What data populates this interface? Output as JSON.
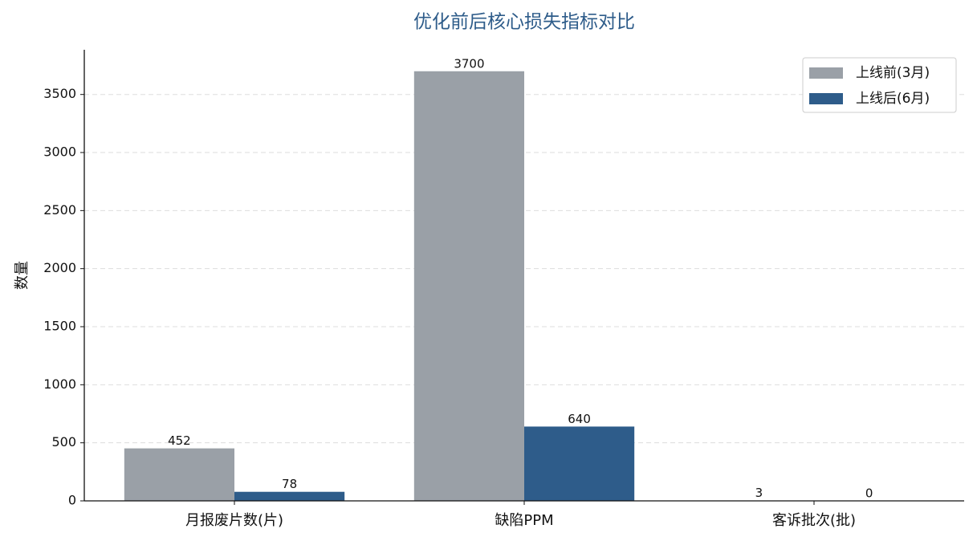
{
  "chart_data": {
    "type": "bar",
    "title": "优化前后核心损失指标对比",
    "y_label": "数量",
    "categories": [
      "月报废片数(片)",
      "缺陷PPM",
      "客诉批次(批)"
    ],
    "series": [
      {
        "name": "上线前(3月)",
        "color": "#9aa0a7",
        "values": [
          452,
          3700,
          3
        ]
      },
      {
        "name": "上线后(6月)",
        "color": "#2e5c8a",
        "values": [
          78,
          640,
          0
        ]
      }
    ],
    "ylim": [
      0,
      3885
    ],
    "yticks": [
      0,
      500,
      1000,
      1500,
      2000,
      2500,
      3000,
      3500
    ],
    "grid": true,
    "legend": "upper-right"
  }
}
